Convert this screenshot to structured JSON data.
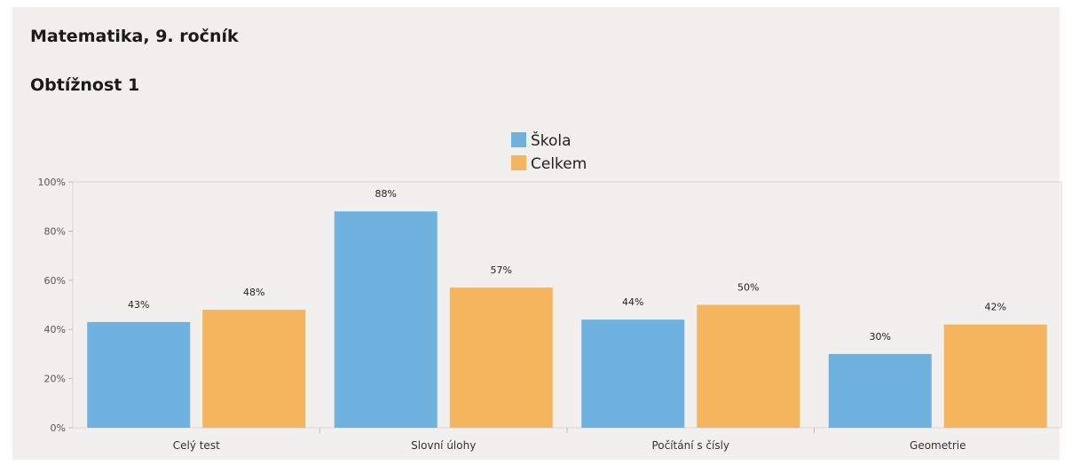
{
  "header": {
    "title": "Matematika, 9. ročník",
    "subtitle": "Obtížnost 1"
  },
  "colors": {
    "skola": "#6fb2e0",
    "celkem": "#f4b55e",
    "background": "#f1f0ee"
  },
  "chart_data": {
    "type": "bar",
    "categories": [
      "Celý test",
      "Slovní úlohy",
      "Počítání s čísly",
      "Geometrie"
    ],
    "series": [
      {
        "name": "Škola",
        "values": [
          43,
          88,
          44,
          30
        ],
        "labels": [
          "43%",
          "88%",
          "44%",
          "30%"
        ]
      },
      {
        "name": "Celkem",
        "values": [
          48,
          57,
          50,
          42
        ],
        "labels": [
          "48%",
          "57%",
          "50%",
          "42%"
        ]
      }
    ],
    "ylim": [
      0,
      100
    ],
    "yticks": [
      0,
      20,
      40,
      60,
      80,
      100
    ],
    "ytick_labels": [
      "0%",
      "20%",
      "40%",
      "60%",
      "80%",
      "100%"
    ],
    "legend_position": "top-center",
    "grid": false
  }
}
